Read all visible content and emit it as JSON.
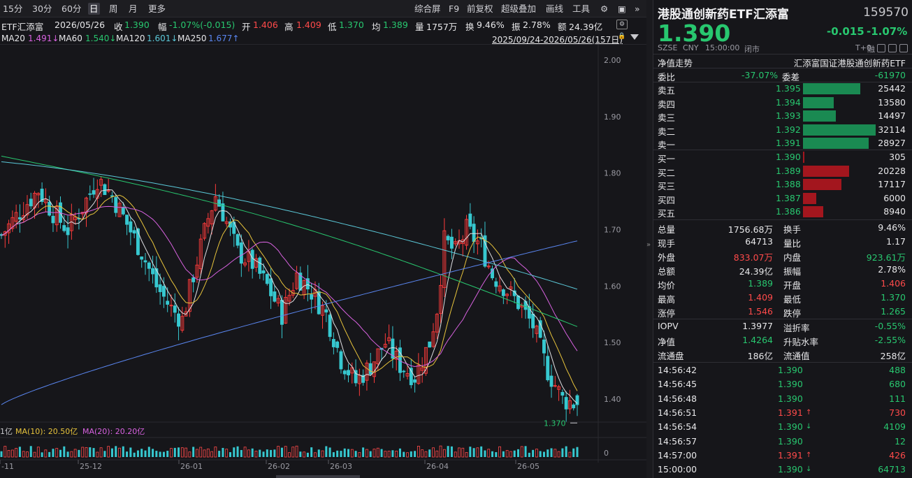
{
  "toolbar": {
    "left": [
      "15分",
      "30分",
      "60分",
      "日",
      "周",
      "月",
      "更多"
    ],
    "active": "日",
    "right": [
      "综合屏",
      "F9",
      "前复权",
      "超级叠加",
      "画线",
      "工具"
    ]
  },
  "info": {
    "name_prefix": "ETF汇添富",
    "date": "2026/05/26",
    "close_label": "收",
    "close": "1.390",
    "change_label": "幅",
    "change": "-1.07%(-0.015)",
    "open_label": "开",
    "open": "1.406",
    "high_label": "高",
    "high": "1.409",
    "low_label": "低",
    "low": "1.370",
    "avg_label": "均",
    "avg": "1.389",
    "vol_label": "量",
    "vol": "1757万",
    "turnover_label": "换",
    "turnover": "9.46%",
    "amp_label": "振",
    "amp": "2.78%",
    "amount_label": "额",
    "amount": "24.39亿"
  },
  "ma": {
    "ma20": "MA20",
    "ma20_val": "1.491↓",
    "ma60": "MA60",
    "ma60_val": "1.540↓",
    "ma120": "MA120",
    "ma120_val": "1.601↓",
    "ma250": "MA250",
    "ma250_val": "1.677↑",
    "range": "2025/09/24-2026/05/26(157日)"
  },
  "volume_legend": {
    "prefix": "1亿",
    "ma10": "MA(10): 20.50亿",
    "ma20": "MA(20): 20.20亿",
    "zero": "0"
  },
  "low_marker": "1.370",
  "chart_data": {
    "type": "candlestick",
    "y_ticks": [
      "2.00",
      "1.90",
      "1.80",
      "1.70",
      "1.60",
      "1.50",
      "1.40"
    ],
    "x_ticks": [
      "-11",
      "25-12",
      "26-01",
      "26-02",
      "26-03",
      "26-04",
      "26-05"
    ],
    "ylim": [
      1.36,
      2.01
    ]
  },
  "quote": {
    "name": "港股通创新药ETF汇添富",
    "code": "159570",
    "price": "1.390",
    "change": "-0.015",
    "change_pct": "-1.07%",
    "market": "SZSE",
    "currency": "CNY",
    "time": "15:00:00",
    "status": "闭市",
    "t0": "T+0",
    "rong": "融"
  },
  "nav_trend": {
    "label": "净值走势",
    "fund": "汇添富国证港股通创新药ETF"
  },
  "order_ratio": {
    "label": "委比",
    "value": "-37.07%",
    "diff_label": "委差",
    "diff": "-61970"
  },
  "asks": [
    {
      "label": "卖五",
      "price": "1.395",
      "vol": "25442",
      "size": 25442
    },
    {
      "label": "卖四",
      "price": "1.394",
      "vol": "13580",
      "size": 13580
    },
    {
      "label": "卖三",
      "price": "1.393",
      "vol": "14497",
      "size": 14497
    },
    {
      "label": "卖二",
      "price": "1.392",
      "vol": "32114",
      "size": 32114
    },
    {
      "label": "卖一",
      "price": "1.391",
      "vol": "28927",
      "size": 28927
    }
  ],
  "bids": [
    {
      "label": "买一",
      "price": "1.390",
      "vol": "305",
      "size": 305
    },
    {
      "label": "买二",
      "price": "1.389",
      "vol": "20228",
      "size": 20228
    },
    {
      "label": "买三",
      "price": "1.388",
      "vol": "17117",
      "size": 17117
    },
    {
      "label": "买四",
      "price": "1.387",
      "vol": "6000",
      "size": 6000
    },
    {
      "label": "买五",
      "price": "1.386",
      "vol": "8940",
      "size": 8940
    }
  ],
  "stats": [
    {
      "l1": "总量",
      "v1": "1756.68万",
      "c1": "white",
      "l2": "换手",
      "v2": "9.46%",
      "c2": "white"
    },
    {
      "l1": "现手",
      "v1": "64713",
      "c1": "white",
      "l2": "量比",
      "v2": "1.17",
      "c2": "white"
    },
    {
      "l1": "外盘",
      "v1": "833.07万",
      "c1": "red",
      "l2": "内盘",
      "v2": "923.61万",
      "c2": "green"
    },
    {
      "l1": "总额",
      "v1": "24.39亿",
      "c1": "white",
      "l2": "振幅",
      "v2": "2.78%",
      "c2": "white"
    },
    {
      "l1": "均价",
      "v1": "1.389",
      "c1": "green",
      "l2": "开盘",
      "v2": "1.406",
      "c2": "red"
    },
    {
      "l1": "最高",
      "v1": "1.409",
      "c1": "red",
      "l2": "最低",
      "v2": "1.370",
      "c2": "green"
    },
    {
      "l1": "涨停",
      "v1": "1.546",
      "c1": "red",
      "l2": "跌停",
      "v2": "1.265",
      "c2": "green"
    }
  ],
  "iopv": [
    {
      "l1": "IOPV",
      "v1": "1.3977",
      "c1": "white",
      "l2": "溢折率",
      "v2": "-0.55%",
      "c2": "green"
    },
    {
      "l1": "净值",
      "v1": "1.4264",
      "c1": "green",
      "l2": "升贴水率",
      "v2": "-2.55%",
      "c2": "green"
    },
    {
      "l1": "流通盘",
      "v1": "186亿",
      "c1": "white",
      "l2": "流通值",
      "v2": "258亿",
      "c2": "white"
    }
  ],
  "ticks": [
    {
      "time": "14:56:42",
      "price": "1.390",
      "arrow": "",
      "vol": "488",
      "vc": "green"
    },
    {
      "time": "14:56:45",
      "price": "1.390",
      "arrow": "",
      "vol": "680",
      "vc": "green"
    },
    {
      "time": "14:56:48",
      "price": "1.390",
      "arrow": "",
      "vol": "111",
      "vc": "green"
    },
    {
      "time": "14:56:51",
      "price": "1.391",
      "arrow": "↑",
      "vol": "730",
      "vc": "red"
    },
    {
      "time": "14:56:54",
      "price": "1.390",
      "arrow": "↓",
      "vol": "4109",
      "vc": "green"
    },
    {
      "time": "14:56:57",
      "price": "1.390",
      "arrow": "",
      "vol": "12",
      "vc": "green"
    },
    {
      "time": "14:57:00",
      "price": "1.391",
      "arrow": "↑",
      "vol": "426",
      "vc": "red"
    },
    {
      "time": "15:00:00",
      "price": "1.390",
      "arrow": "↓",
      "vol": "64713",
      "vc": "green"
    }
  ]
}
